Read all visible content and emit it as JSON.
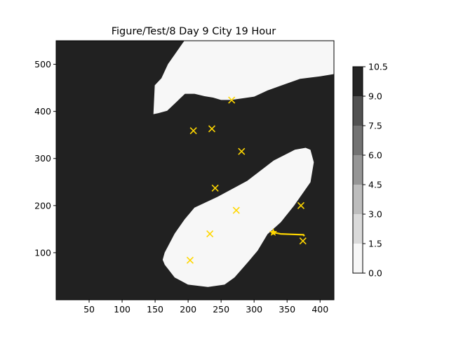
{
  "chart_data": {
    "type": "heatmap",
    "title": "Figure/Test/8 Day 9 City 19 Hour",
    "xlabel": "",
    "ylabel": "",
    "xlim": [
      0,
      421
    ],
    "ylim": [
      0,
      550
    ],
    "x_ticks": [
      50,
      100,
      150,
      200,
      250,
      300,
      350,
      400
    ],
    "y_ticks": [
      100,
      200,
      300,
      400,
      500
    ],
    "grid": false,
    "colors": {
      "sea": "#212121",
      "land": "#f7f7f7",
      "marker": "#ffd700",
      "path": "#ffd700"
    },
    "land_regions": [
      {
        "name": "north-coast",
        "outline": [
          [
            148,
            395
          ],
          [
            150,
            455
          ],
          [
            160,
            470
          ],
          [
            170,
            500
          ],
          [
            185,
            530
          ],
          [
            195,
            550
          ],
          [
            421,
            550
          ],
          [
            421,
            480
          ],
          [
            400,
            475
          ],
          [
            370,
            470
          ],
          [
            340,
            455
          ],
          [
            320,
            445
          ],
          [
            300,
            432
          ],
          [
            280,
            428
          ],
          [
            265,
            425
          ],
          [
            250,
            425
          ],
          [
            238,
            430
          ],
          [
            225,
            433
          ],
          [
            210,
            438
          ],
          [
            195,
            438
          ],
          [
            180,
            418
          ],
          [
            168,
            402
          ],
          [
            155,
            397
          ]
        ]
      },
      {
        "name": "south-island",
        "outline": [
          [
            165,
            75
          ],
          [
            162,
            85
          ],
          [
            165,
            100
          ],
          [
            180,
            140
          ],
          [
            195,
            170
          ],
          [
            210,
            195
          ],
          [
            245,
            218
          ],
          [
            290,
            252
          ],
          [
            330,
            295
          ],
          [
            362,
            318
          ],
          [
            378,
            322
          ],
          [
            385,
            318
          ],
          [
            390,
            292
          ],
          [
            385,
            250
          ],
          [
            360,
            200
          ],
          [
            340,
            165
          ],
          [
            320,
            140
          ],
          [
            305,
            105
          ],
          [
            290,
            80
          ],
          [
            270,
            48
          ],
          [
            255,
            33
          ],
          [
            230,
            28
          ],
          [
            200,
            33
          ],
          [
            180,
            48
          ]
        ]
      }
    ],
    "markers": {
      "symbol": "x",
      "points": [
        [
          203,
          84
        ],
        [
          233,
          140
        ],
        [
          273,
          190
        ],
        [
          241,
          237
        ],
        [
          281,
          315
        ],
        [
          208,
          359
        ],
        [
          236,
          363
        ],
        [
          266,
          424
        ],
        [
          371,
          200
        ],
        [
          374,
          125
        ]
      ]
    },
    "path": {
      "start_marker": "star",
      "points": [
        [
          329,
          143
        ],
        [
          340,
          140
        ],
        [
          355,
          139
        ],
        [
          375,
          138
        ],
        [
          376,
          135
        ]
      ]
    },
    "colorbar": {
      "ticks": [
        "0.0",
        "1.5",
        "3.0",
        "4.5",
        "6.0",
        "7.5",
        "9.0",
        "10.5"
      ],
      "levels": [
        {
          "from": 0.0,
          "to": 1.5,
          "color": "#f7f7f7"
        },
        {
          "from": 1.5,
          "to": 3.0,
          "color": "#dadada"
        },
        {
          "from": 3.0,
          "to": 4.5,
          "color": "#bdbdbd"
        },
        {
          "from": 4.5,
          "to": 6.0,
          "color": "#969696"
        },
        {
          "from": 6.0,
          "to": 7.5,
          "color": "#737373"
        },
        {
          "from": 7.5,
          "to": 9.0,
          "color": "#525252"
        },
        {
          "from": 9.0,
          "to": 10.5,
          "color": "#252525"
        }
      ]
    }
  }
}
